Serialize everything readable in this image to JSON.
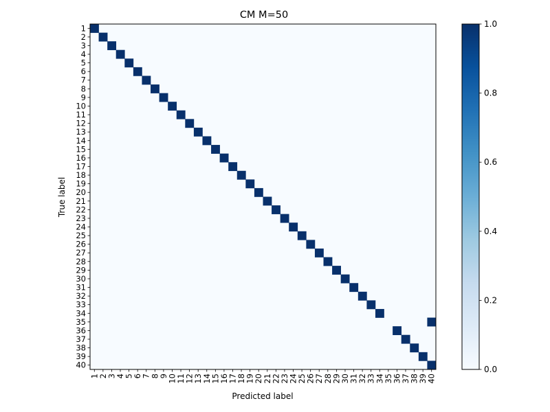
{
  "chart_data": {
    "type": "heatmap",
    "title": "CM M=50",
    "xlabel": "Predicted label",
    "ylabel": "True label",
    "x_categories": [
      "1",
      "2",
      "3",
      "4",
      "5",
      "6",
      "7",
      "8",
      "9",
      "10",
      "11",
      "12",
      "13",
      "14",
      "15",
      "16",
      "17",
      "18",
      "19",
      "20",
      "21",
      "22",
      "23",
      "24",
      "25",
      "26",
      "27",
      "28",
      "29",
      "30",
      "31",
      "32",
      "33",
      "34",
      "35",
      "36",
      "37",
      "38",
      "39",
      "40"
    ],
    "y_categories": [
      "1",
      "2",
      "3",
      "4",
      "5",
      "6",
      "7",
      "8",
      "9",
      "10",
      "11",
      "12",
      "13",
      "14",
      "15",
      "16",
      "17",
      "18",
      "19",
      "20",
      "21",
      "22",
      "23",
      "24",
      "25",
      "26",
      "27",
      "28",
      "29",
      "30",
      "31",
      "32",
      "33",
      "34",
      "35",
      "36",
      "37",
      "38",
      "39",
      "40"
    ],
    "nonzero_cells": [
      {
        "true": "1",
        "predicted": "1",
        "value": 1.0
      },
      {
        "true": "2",
        "predicted": "2",
        "value": 1.0
      },
      {
        "true": "3",
        "predicted": "3",
        "value": 1.0
      },
      {
        "true": "4",
        "predicted": "4",
        "value": 1.0
      },
      {
        "true": "5",
        "predicted": "5",
        "value": 1.0
      },
      {
        "true": "6",
        "predicted": "6",
        "value": 1.0
      },
      {
        "true": "7",
        "predicted": "7",
        "value": 1.0
      },
      {
        "true": "8",
        "predicted": "8",
        "value": 1.0
      },
      {
        "true": "9",
        "predicted": "9",
        "value": 1.0
      },
      {
        "true": "10",
        "predicted": "10",
        "value": 1.0
      },
      {
        "true": "11",
        "predicted": "11",
        "value": 1.0
      },
      {
        "true": "12",
        "predicted": "12",
        "value": 1.0
      },
      {
        "true": "13",
        "predicted": "13",
        "value": 1.0
      },
      {
        "true": "14",
        "predicted": "14",
        "value": 1.0
      },
      {
        "true": "15",
        "predicted": "15",
        "value": 1.0
      },
      {
        "true": "16",
        "predicted": "16",
        "value": 1.0
      },
      {
        "true": "17",
        "predicted": "17",
        "value": 1.0
      },
      {
        "true": "18",
        "predicted": "18",
        "value": 1.0
      },
      {
        "true": "19",
        "predicted": "19",
        "value": 1.0
      },
      {
        "true": "20",
        "predicted": "20",
        "value": 1.0
      },
      {
        "true": "21",
        "predicted": "21",
        "value": 1.0
      },
      {
        "true": "22",
        "predicted": "22",
        "value": 1.0
      },
      {
        "true": "23",
        "predicted": "23",
        "value": 1.0
      },
      {
        "true": "24",
        "predicted": "24",
        "value": 1.0
      },
      {
        "true": "25",
        "predicted": "25",
        "value": 1.0
      },
      {
        "true": "26",
        "predicted": "26",
        "value": 1.0
      },
      {
        "true": "27",
        "predicted": "27",
        "value": 1.0
      },
      {
        "true": "28",
        "predicted": "28",
        "value": 1.0
      },
      {
        "true": "29",
        "predicted": "29",
        "value": 1.0
      },
      {
        "true": "30",
        "predicted": "30",
        "value": 1.0
      },
      {
        "true": "31",
        "predicted": "31",
        "value": 1.0
      },
      {
        "true": "32",
        "predicted": "32",
        "value": 1.0
      },
      {
        "true": "33",
        "predicted": "33",
        "value": 1.0
      },
      {
        "true": "34",
        "predicted": "34",
        "value": 1.0
      },
      {
        "true": "35",
        "predicted": "40",
        "value": 1.0
      },
      {
        "true": "36",
        "predicted": "36",
        "value": 1.0
      },
      {
        "true": "37",
        "predicted": "37",
        "value": 1.0
      },
      {
        "true": "38",
        "predicted": "38",
        "value": 1.0
      },
      {
        "true": "39",
        "predicted": "39",
        "value": 1.0
      },
      {
        "true": "40",
        "predicted": "40",
        "value": 1.0
      }
    ],
    "default_value": 0.0,
    "value_range": [
      0.0,
      1.0
    ],
    "colormap": "Blues",
    "colormap_low": "#f7fbff",
    "colormap_high": "#08306b",
    "colorbar": {
      "position": "right",
      "ticks": [
        "0.0",
        "0.2",
        "0.4",
        "0.6",
        "0.8",
        "1.0"
      ]
    },
    "grid": false
  }
}
